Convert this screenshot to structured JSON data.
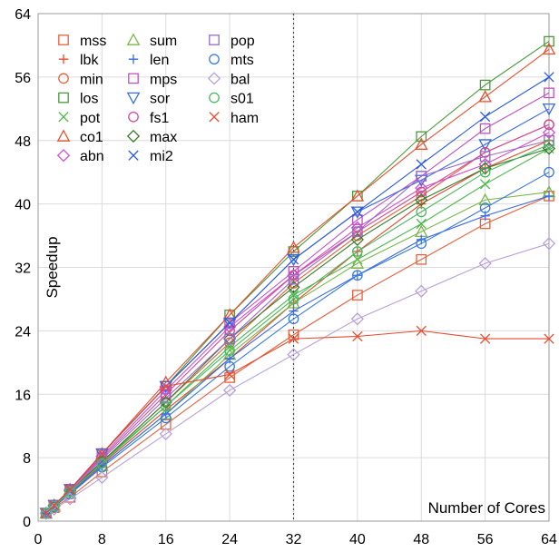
{
  "chart_data": {
    "type": "line",
    "xlabel": "Number of Cores",
    "ylabel": "Speedup",
    "xlim": [
      0,
      64
    ],
    "ylim": [
      0,
      64
    ],
    "x_ticks": [
      0,
      8,
      16,
      24,
      32,
      40,
      48,
      56,
      64
    ],
    "y_ticks": [
      0,
      8,
      16,
      24,
      32,
      40,
      48,
      56,
      64
    ],
    "grid": true,
    "vertical_marker_x": 32,
    "legend_position": "top-left",
    "x": [
      1,
      2,
      4,
      8,
      16,
      24,
      32,
      40,
      48,
      56,
      64
    ],
    "series": [
      {
        "name": "mss",
        "color": "#e8603c",
        "marker": "square",
        "values": [
          1.0,
          1.7,
          3.0,
          6.2,
          12.2,
          18.1,
          23.5,
          28.5,
          33.0,
          37.5,
          41.0
        ]
      },
      {
        "name": "lbk",
        "color": "#e84a2c",
        "marker": "plus",
        "values": [
          1.0,
          1.8,
          3.6,
          7.2,
          14.0,
          20.5,
          27.5,
          34.0,
          40.0,
          44.5,
          48.0
        ]
      },
      {
        "name": "min",
        "color": "#e8603c",
        "marker": "circle",
        "values": [
          1.0,
          1.9,
          3.7,
          7.5,
          15.0,
          22.5,
          30.0,
          36.0,
          41.0,
          46.5,
          50.0
        ]
      },
      {
        "name": "los",
        "color": "#4a9a3a",
        "marker": "square",
        "values": [
          1.0,
          2.0,
          4.0,
          8.5,
          17.0,
          26.0,
          34.0,
          41.0,
          48.5,
          55.0,
          60.5
        ]
      },
      {
        "name": "pot",
        "color": "#4ab84a",
        "marker": "x",
        "values": [
          1.0,
          1.9,
          3.8,
          7.5,
          14.5,
          22.0,
          28.5,
          33.0,
          37.5,
          42.5,
          47.0
        ]
      },
      {
        "name": "co1",
        "color": "#e85030",
        "marker": "triangle",
        "values": [
          1.0,
          2.0,
          4.0,
          8.5,
          17.5,
          26.0,
          34.5,
          41.0,
          47.5,
          53.5,
          59.5
        ]
      },
      {
        "name": "abn",
        "color": "#d050d0",
        "marker": "diamond",
        "values": [
          1.0,
          2.0,
          4.0,
          8.2,
          16.5,
          24.5,
          31.0,
          37.0,
          42.0,
          45.0,
          49.0
        ]
      },
      {
        "name": "sum",
        "color": "#7ab84a",
        "marker": "triangle",
        "values": [
          1.0,
          1.8,
          3.5,
          7.0,
          13.5,
          21.0,
          27.5,
          32.5,
          36.5,
          40.5,
          41.5
        ]
      },
      {
        "name": "len",
        "color": "#3a6ae8",
        "marker": "plus",
        "values": [
          1.0,
          1.8,
          3.5,
          7.0,
          13.5,
          20.5,
          26.5,
          31.0,
          35.5,
          38.5,
          41.0
        ]
      },
      {
        "name": "mps",
        "color": "#c050c0",
        "marker": "square",
        "values": [
          1.0,
          2.0,
          4.0,
          8.5,
          17.0,
          25.0,
          31.5,
          38.0,
          43.5,
          49.5,
          54.0
        ]
      },
      {
        "name": "sor",
        "color": "#3a6ae8",
        "marker": "triangle-down",
        "values": [
          1.0,
          2.0,
          4.0,
          8.5,
          17.0,
          25.0,
          33.0,
          39.0,
          43.0,
          47.5,
          52.0
        ]
      },
      {
        "name": "fs1",
        "color": "#d04a9a",
        "marker": "circle",
        "values": [
          1.0,
          2.0,
          4.0,
          8.0,
          16.0,
          24.0,
          31.0,
          36.5,
          41.5,
          46.5,
          50.0
        ]
      },
      {
        "name": "max",
        "color": "#3a7a2a",
        "marker": "diamond",
        "values": [
          1.0,
          1.9,
          3.8,
          7.5,
          15.0,
          23.0,
          29.5,
          35.5,
          40.5,
          44.5,
          47.0
        ]
      },
      {
        "name": "mi2",
        "color": "#2a5ae0",
        "marker": "x",
        "values": [
          1.0,
          2.0,
          4.0,
          8.5,
          17.0,
          25.0,
          33.0,
          39.0,
          45.0,
          51.0,
          56.0
        ]
      },
      {
        "name": "pop",
        "color": "#9a6ac8",
        "marker": "square",
        "values": [
          1.0,
          1.9,
          3.8,
          7.8,
          15.5,
          23.0,
          30.5,
          36.5,
          43.5,
          46.0,
          48.0
        ]
      },
      {
        "name": "mts",
        "color": "#3a7ae0",
        "marker": "circle",
        "values": [
          1.0,
          1.8,
          3.4,
          6.8,
          13.0,
          19.5,
          25.5,
          31.0,
          35.0,
          39.5,
          44.0
        ]
      },
      {
        "name": "bal",
        "color": "#b8a0d8",
        "marker": "diamond",
        "values": [
          1.0,
          1.5,
          2.8,
          5.5,
          11.0,
          16.5,
          21.0,
          25.5,
          29.0,
          32.5,
          35.0
        ]
      },
      {
        "name": "s01",
        "color": "#4ab860",
        "marker": "circle",
        "values": [
          1.0,
          1.9,
          3.7,
          7.3,
          14.5,
          21.5,
          28.0,
          34.0,
          39.0,
          44.0,
          47.5
        ]
      },
      {
        "name": "ham",
        "color": "#e84a2c",
        "marker": "x",
        "values": [
          1.0,
          2.0,
          4.0,
          8.5,
          17.0,
          18.5,
          23.0,
          23.3,
          24.0,
          23.0,
          23.0
        ]
      }
    ]
  }
}
